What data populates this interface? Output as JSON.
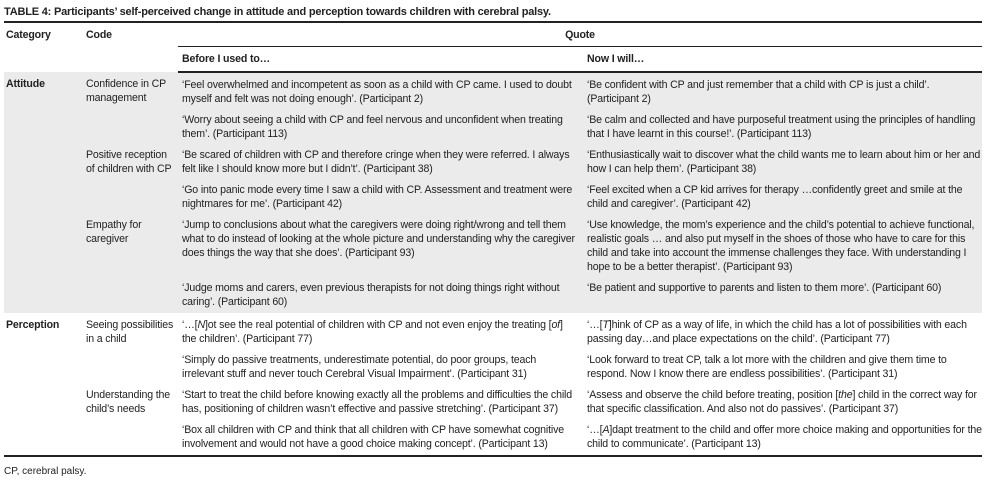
{
  "title": "TABLE 4: Participants’ self-perceived change in attitude and perception towards children with cerebral palsy.",
  "headers": {
    "category": "Category",
    "code": "Code",
    "quote": "Quote",
    "before": "Before I used to…",
    "now": "Now I will…"
  },
  "categories": [
    {
      "name": "Attitude",
      "shaded": true,
      "codes": [
        {
          "code": "Confidence in CP management",
          "quotes": [
            {
              "before": [
                {
                  "t": "‘Feel overwhelmed and incompetent as soon as a child with CP came. I used to doubt myself and felt was not doing enough’. (Participant 2)"
                }
              ],
              "now": [
                {
                  "t": "‘Be confident with CP and just remember that a child with CP is just a child’. (Participant 2)"
                }
              ]
            },
            {
              "before": [
                {
                  "t": "‘Worry about seeing a child with CP and feel nervous and unconfident when treating them’. (Participant 113)"
                }
              ],
              "now": [
                {
                  "t": "‘Be calm and collected and have purposeful treatment using the principles of handling that I have learnt in this course!’. (Participant 113)"
                }
              ]
            }
          ]
        },
        {
          "code": "Positive reception of children with CP",
          "quotes": [
            {
              "before": [
                {
                  "t": "‘Be scared of children with CP and therefore cringe when they were referred. I always felt like I should know more but I didn’t’. (Participant 38)"
                }
              ],
              "now": [
                {
                  "t": "‘Enthusiastically wait to discover what the child wants me to learn about him or her and how I can help them’. (Participant 38)"
                }
              ]
            },
            {
              "before": [
                {
                  "t": "‘Go into panic mode every time I saw a child with CP. Assessment and treatment were nightmares for me’. (Participant 42)"
                }
              ],
              "now": [
                {
                  "t": "‘Feel excited when a CP kid arrives for therapy …confidently greet and smile at the child and caregiver’. (Participant 42)"
                }
              ]
            }
          ]
        },
        {
          "code": "Empathy for caregiver",
          "quotes": [
            {
              "before": [
                {
                  "t": "‘Jump to conclusions about what the caregivers were doing right/wrong and tell them what to do instead of looking at the whole picture and understanding why the caregiver does things the way that she does’. (Participant 93)"
                }
              ],
              "now": [
                {
                  "t": "‘Use knowledge, the mom’s experience and the child’s potential to achieve functional, realistic goals … and also put myself in the shoes of those who have to care for this child and take into account the immense challenges they face. With understanding I hope to be a better therapist’. (Participant 93)"
                }
              ]
            },
            {
              "before": [
                {
                  "t": "‘Judge moms and carers, even previous therapists for not doing things right without caring’. (Participant 60)"
                }
              ],
              "now": [
                {
                  "t": "‘Be patient and supportive to parents and listen to them more’. (Participant 60)"
                }
              ]
            }
          ]
        }
      ]
    },
    {
      "name": "Perception",
      "shaded": false,
      "codes": [
        {
          "code": "Seeing possibilities in a child",
          "quotes": [
            {
              "before": [
                {
                  "t": "‘…["
                },
                {
                  "t": "N",
                  "i": true
                },
                {
                  "t": "]ot see the real potential of children with CP and not even enjoy the treating ["
                },
                {
                  "t": "of",
                  "i": true
                },
                {
                  "t": "] the children’. (Participant 77)"
                }
              ],
              "now": [
                {
                  "t": "‘…["
                },
                {
                  "t": "T",
                  "i": true
                },
                {
                  "t": "]hink of CP as a way of life, in which the child has a lot of possibilities with each passing day…and place expectations on the child’. (Participant 77)"
                }
              ]
            },
            {
              "before": [
                {
                  "t": "‘Simply do passive treatments, underestimate potential, do poor groups, teach irrelevant stuff and never touch Cerebral Visual Impairment’. (Participant 31)"
                }
              ],
              "now": [
                {
                  "t": "‘Look forward to treat CP, talk a lot more with the children and give them time to respond. Now I know there are endless possibilities’. (Participant 31)"
                }
              ]
            }
          ]
        },
        {
          "code": "Understanding the child’s needs",
          "quotes": [
            {
              "before": [
                {
                  "t": "‘Start to treat the child before knowing exactly all the problems and difficulties the child has, positioning of children wasn’t effective and passive stretching’. (Participant 37)"
                }
              ],
              "now": [
                {
                  "t": "‘Assess and observe the child before treating, position ["
                },
                {
                  "t": "the",
                  "i": true
                },
                {
                  "t": "] child in the correct way for that specific classification. And also not do passives’. (Participant 37)"
                }
              ]
            },
            {
              "before": [
                {
                  "t": "‘Box all children with CP and think that all children with CP have somewhat cognitive involvement and would not have a good choice making concept’. (Participant 13)"
                }
              ],
              "now": [
                {
                  "t": "‘…["
                },
                {
                  "t": "A",
                  "i": true
                },
                {
                  "t": "]dapt treatment to the child and offer more choice making and opportunities for the child to communicate’. (Participant 13)"
                }
              ]
            }
          ]
        }
      ]
    }
  ],
  "footnote": "CP, cerebral palsy."
}
